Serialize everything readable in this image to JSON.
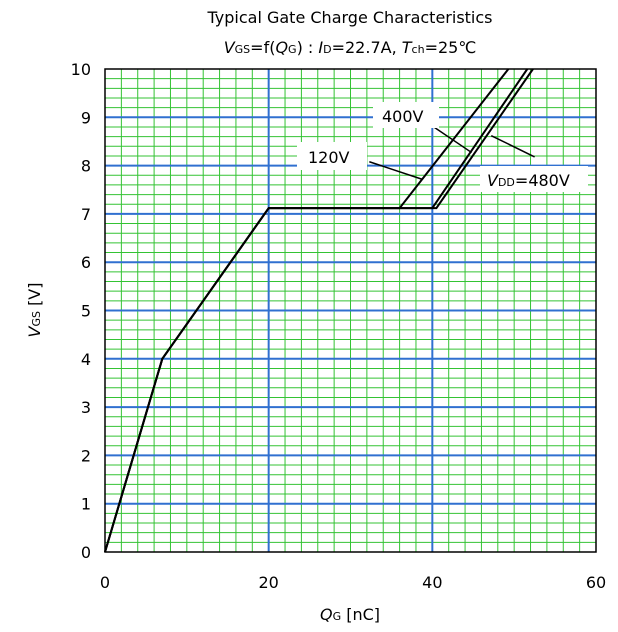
{
  "chart_data": {
    "type": "line",
    "title": "Typical Gate Charge Characteristics",
    "subtitle": {
      "v": "V",
      "gs_sub": "GS",
      "f": "=f(",
      "q": "Q",
      "g_sub": "G",
      "close": ") : ",
      "i": "I",
      "d_sub": "D",
      "cur": "=22.7A, ",
      "t": "T",
      "ch_sub": "ch",
      "temp": "=25℃"
    },
    "xlabel": {
      "main": "Q",
      "sub": "G",
      "unit": "  [nC]"
    },
    "ylabel": {
      "main": "V",
      "sub": "GS",
      "unit": "  [V]"
    },
    "xlim": [
      0,
      60
    ],
    "ylim": [
      0,
      10
    ],
    "x_ticks": [
      "0",
      "20",
      "40",
      "60"
    ],
    "y_ticks": [
      "0",
      "1",
      "2",
      "3",
      "4",
      "5",
      "6",
      "7",
      "8",
      "9",
      "10"
    ],
    "grid": true,
    "series": [
      {
        "name": "120V",
        "points": [
          [
            0,
            0
          ],
          [
            7,
            4
          ],
          [
            20,
            7.12
          ],
          [
            36,
            7.12
          ],
          [
            49.3,
            10
          ]
        ]
      },
      {
        "name": "400V",
        "points": [
          [
            0,
            0
          ],
          [
            7,
            4
          ],
          [
            20,
            7.12
          ],
          [
            40,
            7.12
          ],
          [
            51.6,
            10
          ]
        ]
      },
      {
        "name": "480V",
        "points": [
          [
            0,
            0
          ],
          [
            7,
            4
          ],
          [
            20,
            7.12
          ],
          [
            40.5,
            7.12
          ],
          [
            52.3,
            10
          ]
        ]
      }
    ],
    "annotations": [
      {
        "id": "a120",
        "text": "120V"
      },
      {
        "id": "a400",
        "text": "400V"
      },
      {
        "id": "a480",
        "pre": "V",
        "sub": "DD",
        "text": "=480V"
      }
    ],
    "colors": {
      "grid_major": "#3070d0",
      "grid_minor": "#34c334",
      "line": "#000000"
    }
  }
}
